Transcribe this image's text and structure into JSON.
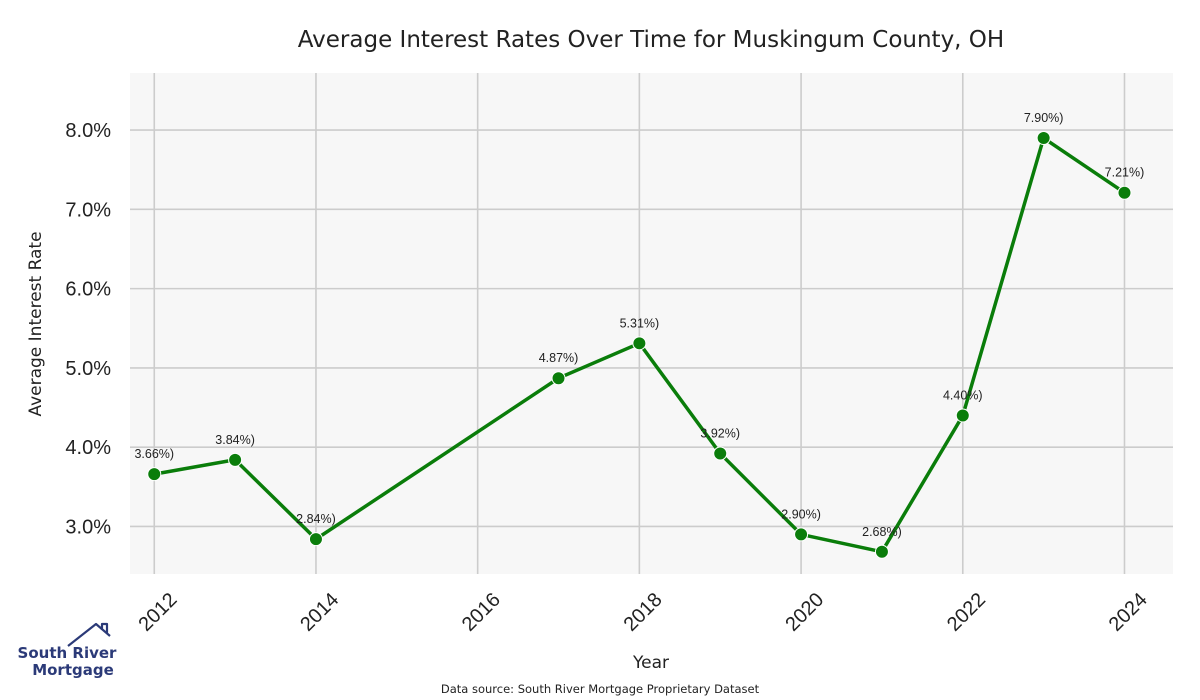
{
  "chart_data": {
    "type": "line",
    "title": "Average Interest Rates Over Time for Muskingum County, OH",
    "xlabel": "Year",
    "ylabel": "Average Interest Rate",
    "x": [
      2012,
      2013,
      2014,
      2017,
      2018,
      2019,
      2020,
      2021,
      2022,
      2023,
      2024
    ],
    "values": [
      3.66,
      3.84,
      2.84,
      4.87,
      5.31,
      3.92,
      2.9,
      2.68,
      4.4,
      7.9,
      7.21
    ],
    "point_labels": [
      "3.66%)",
      "3.84%)",
      "2.84%)",
      "4.87%)",
      "5.31%)",
      "3.92%)",
      "2.90%)",
      "2.68%)",
      "4.40%)",
      "7.90%)",
      "7.21%)"
    ],
    "xticks": [
      "2012",
      "2014",
      "2016",
      "2018",
      "2020",
      "2022",
      "2024"
    ],
    "yticks": [
      "3.0%",
      "4.0%",
      "5.0%",
      "6.0%",
      "7.0%",
      "8.0%"
    ],
    "xlim": [
      2011.7,
      2024.6
    ],
    "ylim": [
      2.4,
      8.72
    ],
    "grid": true,
    "line_color": "#0a7d0a",
    "plot_background": "#f7f7f7",
    "grid_color": "#cccccc"
  },
  "source_note": "Data source: South River Mortgage Proprietary Dataset",
  "logo": {
    "line1": "South River",
    "line2": "Mortgage",
    "color": "#2b3a78"
  }
}
